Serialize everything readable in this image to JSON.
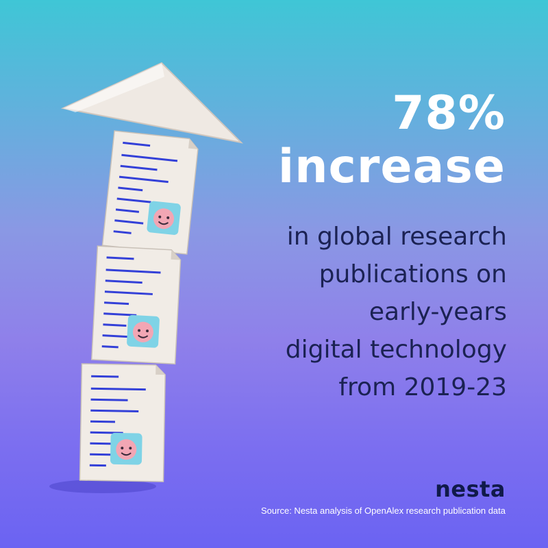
{
  "headline": {
    "stat": "78%",
    "stat_word": "increase"
  },
  "description_lines": [
    "in global research",
    "publications on",
    "early-years",
    "digital technology",
    "from 2019-23"
  ],
  "brand": "nesta",
  "source": "Source: Nesta analysis of OpenAlex research publication data",
  "illustration": {
    "subject": "stack of three document pages topped by an upward arrow",
    "icons": [
      "arrow-up-icon",
      "document-icon",
      "baby-face-icon"
    ]
  },
  "colors": {
    "background_top": "#3fc6d6",
    "background_bottom": "#6b63f2",
    "headline": "#ffffff",
    "body_text": "#1b2253",
    "document_lines": "#3340d8",
    "baby_tile": "#7fd3e6",
    "baby_face": "#f2a6b4"
  }
}
